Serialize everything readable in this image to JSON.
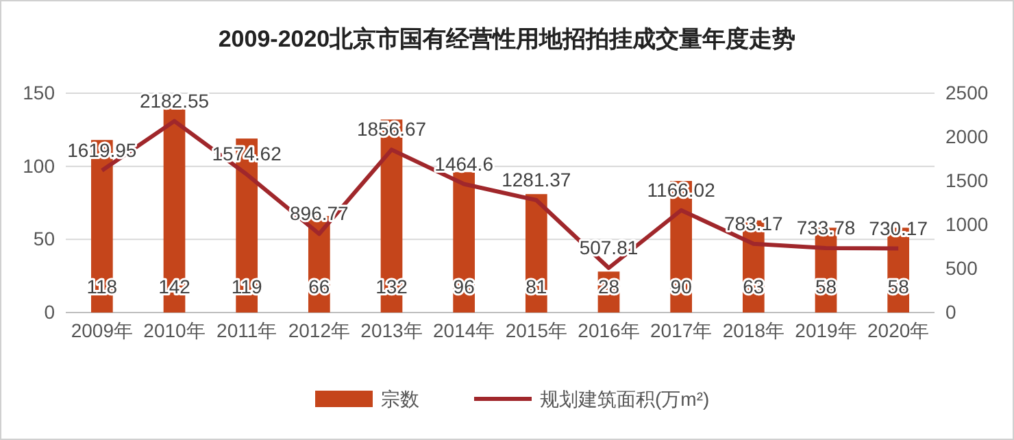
{
  "chart_data": {
    "type": "bar",
    "title": "2009-2020北京市国有经营性用地招拍挂成交量年度走势",
    "categories": [
      "2009年",
      "2010年",
      "2011年",
      "2012年",
      "2013年",
      "2014年",
      "2015年",
      "2016年",
      "2017年",
      "2018年",
      "2019年",
      "2020年"
    ],
    "series": [
      {
        "name": "宗数",
        "color": "#c5451b",
        "values": [
          118,
          142,
          119,
          66,
          132,
          96,
          81,
          28,
          90,
          63,
          58,
          58
        ]
      },
      {
        "name": "规划建筑面积(万m²)",
        "type": "line",
        "axis": "y2",
        "color": "#a0272b",
        "values": [
          1619.95,
          2182.55,
          1574.62,
          896.77,
          1856.67,
          1464.6,
          1281.37,
          507.81,
          1166.02,
          783.17,
          733.78,
          730.17
        ]
      }
    ],
    "ylim": [
      0,
      150
    ],
    "yticks": [
      0,
      50,
      100,
      150
    ],
    "y2lim": [
      0,
      2500
    ],
    "y2ticks": [
      0,
      500,
      1000,
      1500,
      2000,
      2500
    ],
    "grid": "y",
    "legend": "bottom",
    "data_labels": true,
    "marker": "none",
    "line_style": "solid"
  }
}
